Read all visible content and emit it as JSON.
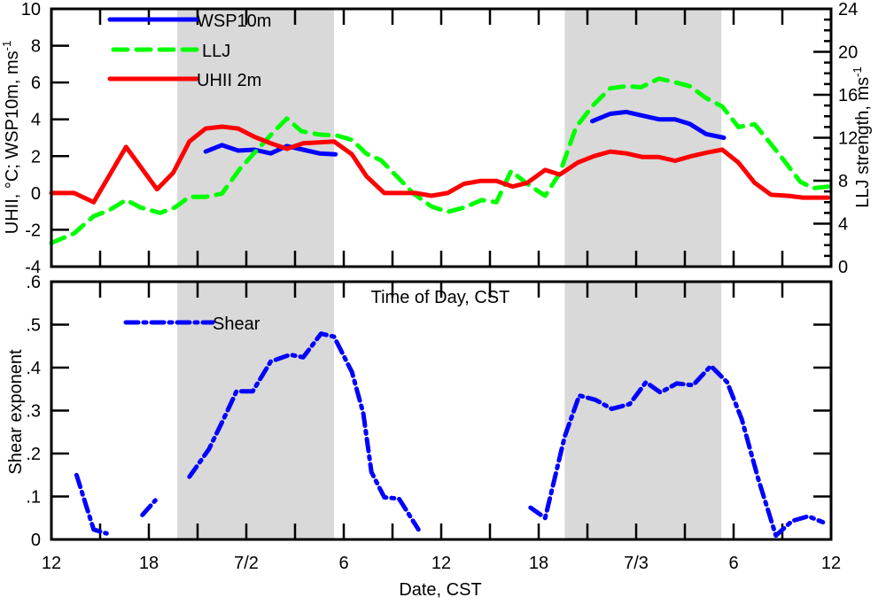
{
  "chart_data": [
    {
      "type": "line",
      "panel": "top",
      "xlabel": "Time of Day, CST",
      "ylabel": "UHII, °C; WSP10m, ms",
      "ylabel_sup": "-1",
      "y2label": "LLJ strength, ms",
      "y2label_sup": "-1",
      "x_unit": "hours since 12 CST 7/1",
      "xlim": [
        0,
        48
      ],
      "ylim": [
        -4,
        10
      ],
      "y2lim": [
        0,
        24
      ],
      "yticks": [
        "10",
        "8",
        "6",
        "4",
        "2",
        "0",
        "-2",
        "-4"
      ],
      "ytick_values": [
        10,
        8,
        6,
        4,
        2,
        0,
        -2,
        -4
      ],
      "y2ticks": [
        "24",
        "20",
        "16",
        "12",
        "8",
        "4",
        "0"
      ],
      "y2tick_values": [
        24,
        20,
        16,
        12,
        8,
        4,
        0
      ],
      "shaded_hours": [
        [
          7.75,
          17.4
        ],
        [
          31.6,
          41.25
        ]
      ],
      "legend_placement": "top-left",
      "series": [
        {
          "name": "WSP10m",
          "axis": "left",
          "color": "#0000ff",
          "style": "solid",
          "segments": [
            [
              [
                9.5,
                2.25
              ],
              [
                10.5,
                2.6
              ],
              [
                11.5,
                2.3
              ],
              [
                12.5,
                2.35
              ],
              [
                13.5,
                2.15
              ],
              [
                14.5,
                2.55
              ],
              [
                15.5,
                2.35
              ],
              [
                16.5,
                2.15
              ],
              [
                17.5,
                2.1
              ]
            ],
            [
              [
                33.3,
                3.9
              ],
              [
                34.4,
                4.3
              ],
              [
                35.4,
                4.4
              ],
              [
                36.4,
                4.2
              ],
              [
                37.4,
                4.0
              ],
              [
                38.4,
                4.0
              ],
              [
                39.3,
                3.75
              ],
              [
                40.3,
                3.2
              ],
              [
                41.4,
                3.0
              ]
            ]
          ]
        },
        {
          "name": "LLJ",
          "axis": "right",
          "color": "#00ff00",
          "style": "dashed",
          "segments": [
            [
              [
                0,
                2.2
              ],
              [
                1.4,
                3.1
              ],
              [
                2.6,
                4.7
              ],
              [
                3.5,
                5.2
              ],
              [
                4.6,
                6.2
              ],
              [
                5.5,
                5.5
              ],
              [
                6.7,
                5.0
              ],
              [
                7.6,
                5.5
              ],
              [
                8.5,
                6.5
              ],
              [
                9.5,
                6.5
              ],
              [
                10.5,
                6.8
              ],
              [
                11.6,
                9.1
              ],
              [
                12.5,
                10.6
              ],
              [
                13.5,
                12.25
              ],
              [
                14.5,
                13.8
              ],
              [
                15.4,
                12.6
              ],
              [
                16.5,
                12.3
              ],
              [
                17.6,
                12.2
              ],
              [
                18.5,
                11.8
              ],
              [
                19.4,
                10.5
              ],
              [
                20.3,
                9.9
              ],
              [
                21.2,
                8.5
              ],
              [
                22.3,
                6.8
              ],
              [
                23.4,
                5.6
              ],
              [
                24.4,
                5.1
              ],
              [
                25.4,
                5.5
              ],
              [
                26.5,
                6.2
              ],
              [
                27.4,
                6.0
              ],
              [
                28.3,
                8.9
              ],
              [
                29.3,
                7.7
              ],
              [
                30.4,
                6.6
              ],
              [
                31.3,
                8.7
              ],
              [
                32.3,
                13.0
              ],
              [
                33.4,
                15.1
              ],
              [
                34.4,
                16.6
              ],
              [
                35.4,
                16.8
              ],
              [
                36.3,
                16.7
              ],
              [
                37.4,
                17.5
              ],
              [
                38.3,
                17.2
              ],
              [
                39.3,
                16.8
              ],
              [
                40.3,
                15.7
              ],
              [
                41.3,
                14.9
              ],
              [
                42.3,
                13.0
              ],
              [
                43.3,
                13.25
              ],
              [
                44.2,
                11.6
              ],
              [
                45.1,
                9.9
              ],
              [
                46.1,
                7.9
              ],
              [
                46.9,
                7.3
              ],
              [
                47.8,
                7.45
              ]
            ]
          ]
        },
        {
          "name": "UHII 2m",
          "axis": "left",
          "color": "#ff0000",
          "style": "solid",
          "segments": [
            [
              [
                0,
                0
              ],
              [
                1.4,
                0
              ],
              [
                2.6,
                -0.5
              ],
              [
                4.6,
                2.5
              ],
              [
                6.5,
                0.2
              ],
              [
                7.5,
                1.1
              ],
              [
                8.5,
                2.8
              ],
              [
                9.5,
                3.5
              ],
              [
                10.5,
                3.6
              ],
              [
                11.5,
                3.5
              ],
              [
                12.5,
                3.05
              ],
              [
                13.5,
                2.7
              ],
              [
                14.5,
                2.4
              ],
              [
                15.5,
                2.7
              ],
              [
                16.5,
                2.75
              ],
              [
                17.4,
                2.8
              ],
              [
                18.5,
                2.1
              ],
              [
                19.4,
                0.9
              ],
              [
                20.5,
                0
              ],
              [
                21.4,
                0
              ],
              [
                22.4,
                0
              ],
              [
                23.4,
                -0.15
              ],
              [
                24.4,
                0
              ],
              [
                25.4,
                0.5
              ],
              [
                26.4,
                0.65
              ],
              [
                27.4,
                0.65
              ],
              [
                28.4,
                0.35
              ],
              [
                29.3,
                0.55
              ],
              [
                30.4,
                1.25
              ],
              [
                31.3,
                1.0
              ],
              [
                32.4,
                1.65
              ],
              [
                33.4,
                2.0
              ],
              [
                34.4,
                2.25
              ],
              [
                35.4,
                2.15
              ],
              [
                36.4,
                1.95
              ],
              [
                37.4,
                1.95
              ],
              [
                38.4,
                1.75
              ],
              [
                39.4,
                2.0
              ],
              [
                40.4,
                2.2
              ],
              [
                41.3,
                2.35
              ],
              [
                42.3,
                1.65
              ],
              [
                43.3,
                0.55
              ],
              [
                44.3,
                -0.1
              ],
              [
                45.3,
                -0.15
              ],
              [
                46.3,
                -0.25
              ],
              [
                47.8,
                -0.25
              ]
            ]
          ]
        }
      ]
    },
    {
      "type": "line",
      "panel": "bottom",
      "xlabel": "Date, CST",
      "ylabel": "Shear exponent",
      "xlim": [
        0,
        48
      ],
      "ylim": [
        0,
        0.6
      ],
      "yticks": [
        ".6",
        ".5",
        ".4",
        ".3",
        ".2",
        ".1",
        "0"
      ],
      "ytick_values": [
        0.6,
        0.5,
        0.4,
        0.3,
        0.2,
        0.1,
        0
      ],
      "xticks": [
        "12",
        "18",
        "7/2",
        "6",
        "12",
        "18",
        "7/3",
        "6",
        "12"
      ],
      "xtick_values": [
        0,
        6,
        12,
        18,
        24,
        30,
        36,
        42,
        48
      ],
      "shaded_hours": [
        [
          7.75,
          17.4
        ],
        [
          31.6,
          41.25
        ]
      ],
      "legend_placement": "top-left",
      "series": [
        {
          "name": "Shear",
          "color": "#0000ff",
          "style": "dash-dot",
          "segments": [
            [
              [
                1.55,
                0.15
              ],
              [
                2.6,
                0.023
              ],
              [
                3.4,
                0.014
              ]
            ],
            [
              [
                5.6,
                0.057
              ],
              [
                6.4,
                0.091
              ]
            ],
            [
              [
                8.5,
                0.146
              ],
              [
                9.7,
                0.21
              ],
              [
                10.6,
                0.28
              ],
              [
                11.4,
                0.345
              ],
              [
                12.4,
                0.345
              ],
              [
                13.5,
                0.414
              ],
              [
                14.7,
                0.43
              ],
              [
                15.5,
                0.424
              ],
              [
                16.6,
                0.479
              ],
              [
                17.4,
                0.472
              ],
              [
                18.5,
                0.39
              ],
              [
                19.2,
                0.294
              ],
              [
                19.7,
                0.157
              ],
              [
                20.5,
                0.098
              ],
              [
                21.4,
                0.095
              ],
              [
                22.6,
                0.023
              ]
            ],
            [
              [
                29.5,
                0.074
              ],
              [
                30.4,
                0.05
              ],
              [
                31.6,
                0.239
              ],
              [
                32.5,
                0.335
              ],
              [
                33.5,
                0.325
              ],
              [
                34.5,
                0.304
              ],
              [
                35.6,
                0.315
              ],
              [
                36.6,
                0.366
              ],
              [
                37.5,
                0.342
              ],
              [
                38.5,
                0.363
              ],
              [
                39.5,
                0.359
              ],
              [
                40.6,
                0.404
              ],
              [
                41.6,
                0.366
              ],
              [
                42.5,
                0.28
              ],
              [
                43.5,
                0.143
              ],
              [
                44.6,
                0.009
              ],
              [
                45.6,
                0.043
              ],
              [
                46.6,
                0.054
              ],
              [
                47.5,
                0.04
              ]
            ]
          ]
        }
      ]
    }
  ]
}
